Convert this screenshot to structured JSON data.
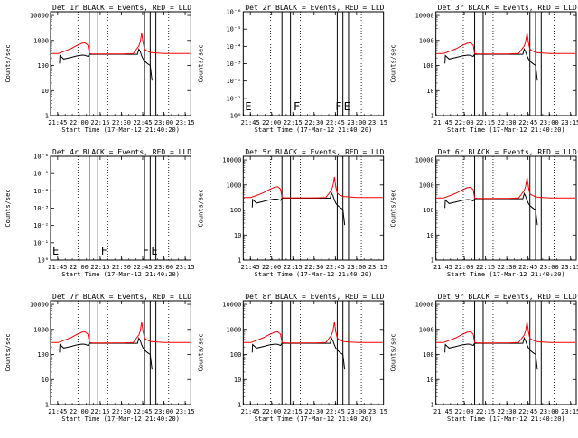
{
  "figure": {
    "x_tick_labels": [
      "21:45",
      "22:00",
      "22:15",
      "22:30",
      "22:45",
      "23:00",
      "23:15"
    ],
    "x_axis_label": "Start Time (17-Mar-12 21:40:20)",
    "y_axis_label": "Counts/sec",
    "log_tick_labels": [
      "1",
      "10",
      "100",
      "1000",
      "10000"
    ],
    "empty_tick_labels": [
      "10⁰",
      "10⁻¹",
      "10⁻²",
      "10⁻³",
      "10⁻⁴",
      "10⁻⁵",
      "10⁻⁶"
    ],
    "colors": {
      "events": "#000000",
      "lld": "#ff0000",
      "background": "#ffffff"
    }
  },
  "chart_data": [
    {
      "type": "line",
      "title": "Det 1r BLACK = Events, RED = LLD",
      "has_data": true,
      "scale": 1.0
    },
    {
      "type": "line",
      "title": "Det 2r BLACK = Events, RED = LLD",
      "has_data": false
    },
    {
      "type": "line",
      "title": "Det 3r BLACK = Events, RED = LLD",
      "has_data": true,
      "scale": 1.0
    },
    {
      "type": "line",
      "title": "Det 4r BLACK = Events, RED = LLD",
      "has_data": false
    },
    {
      "type": "line",
      "title": "Det 5r BLACK = Events, RED = LLD",
      "has_data": true,
      "scale": 1.05
    },
    {
      "type": "line",
      "title": "Det 6r BLACK = Events, RED = LLD",
      "has_data": true,
      "scale": 1.0
    },
    {
      "type": "line",
      "title": "Det 7r BLACK = Events, RED = LLD",
      "has_data": true,
      "scale": 1.0
    },
    {
      "type": "line",
      "title": "Det 8r BLACK = Events, RED = LLD",
      "has_data": true,
      "scale": 1.0
    },
    {
      "type": "line",
      "title": "Det 9r BLACK = Events, RED = LLD",
      "has_data": true,
      "scale": 1.0
    }
  ],
  "timeline": {
    "x_range_min": [
      -0.33,
      98.67
    ],
    "x_tick_min": [
      4.67,
      19.67,
      34.67,
      49.67,
      64.67,
      79.67,
      94.67
    ],
    "dotted_min": [
      19.0,
      40.0,
      83.0
    ],
    "solid_min": [
      27.0,
      33.0,
      66.0,
      70.0,
      74.0
    ],
    "flags": [
      {
        "label": "F",
        "min": 34.5
      },
      {
        "label": "F",
        "min": 64.0
      },
      {
        "label": "E",
        "min": 70.0
      }
    ],
    "lld": {
      "minutes": [
        0,
        5,
        10,
        14,
        18,
        22,
        24,
        26,
        27,
        29,
        33,
        45,
        50,
        58,
        62,
        63,
        64,
        65,
        66,
        67,
        68,
        70,
        73,
        80,
        90,
        98
      ],
      "counts": [
        300,
        300,
        380,
        470,
        620,
        780,
        800,
        650,
        300,
        290,
        290,
        290,
        290,
        300,
        600,
        900,
        2000,
        800,
        450,
        400,
        380,
        330,
        320,
        300,
        300,
        300
      ]
    },
    "events": {
      "minutes": [
        6,
        6.3,
        9,
        14,
        18,
        22,
        24,
        26,
        27,
        29,
        33,
        45,
        50,
        58,
        61,
        62,
        63,
        64,
        65,
        66,
        68,
        70
      ],
      "counts": [
        120,
        250,
        180,
        210,
        240,
        260,
        255,
        230,
        280,
        280,
        280,
        280,
        280,
        280,
        280,
        450,
        350,
        240,
        180,
        150,
        120,
        100
      ]
    }
  }
}
